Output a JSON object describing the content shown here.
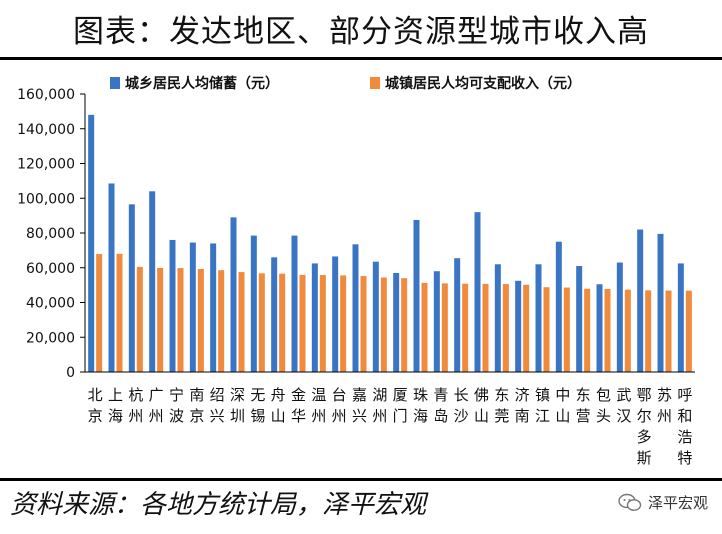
{
  "title": "图表：发达地区、部分资源型城市收入高",
  "source": "资料来源：各地方统计局，泽平宏观",
  "watermark": "泽平宏观",
  "watermark_icon": "wechat-icon",
  "colors": {
    "savings": "#3a75c4",
    "income": "#f08a3c",
    "axis": "#000000"
  },
  "chart_data": {
    "type": "bar",
    "categories": [
      "北京",
      "上海",
      "杭州",
      "广州",
      "宁波",
      "南京",
      "绍兴",
      "深圳",
      "无锡",
      "舟山",
      "金华",
      "温州",
      "台州",
      "嘉兴",
      "湖州",
      "厦门",
      "珠海",
      "青岛",
      "长沙",
      "佛山",
      "东莞",
      "济南",
      "镇江",
      "中山",
      "东营",
      "包头",
      "武汉",
      "鄂尔多斯",
      "苏州",
      "呼和浩特"
    ],
    "series": [
      {
        "name": "城乡居民人均储蓄（元）",
        "values": [
          148000,
          108500,
          96500,
          104000,
          76000,
          74500,
          74000,
          89000,
          78500,
          66000,
          78500,
          62500,
          66500,
          73500,
          63500,
          57000,
          87500,
          58000,
          65500,
          92000,
          62000,
          52500,
          62000,
          75000,
          61000,
          50500,
          63000,
          82000,
          79500,
          62500
        ]
      },
      {
        "name": "城镇居民人均可支配收入（元）",
        "values": [
          67900,
          68000,
          60500,
          59900,
          59800,
          59300,
          58600,
          57500,
          56800,
          56600,
          55900,
          55800,
          55600,
          55200,
          54400,
          54000,
          51300,
          51000,
          50800,
          50700,
          50600,
          50200,
          48800,
          48600,
          47900,
          47800,
          47400,
          47000,
          46900,
          46800
        ]
      }
    ],
    "yticks": [
      "0",
      "20,000",
      "40,000",
      "60,000",
      "80,000",
      "100,000",
      "120,000",
      "140,000",
      "160,000"
    ],
    "ylim": [
      0,
      160000
    ],
    "xlabel": "",
    "ylabel": "",
    "legend": "top",
    "grid": false
  }
}
